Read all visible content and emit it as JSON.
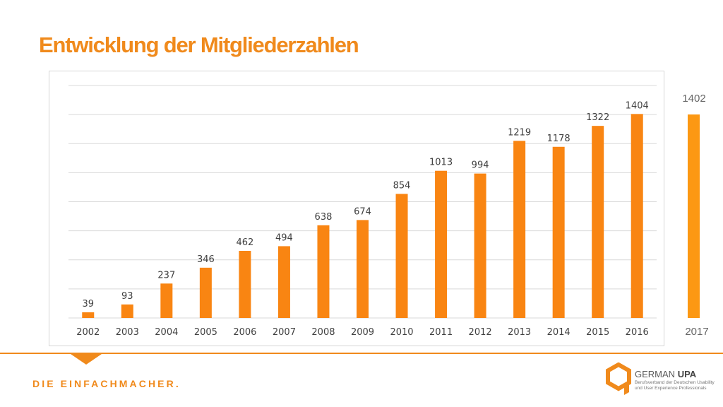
{
  "slide": {
    "title": "Entwicklung der Mitgliederzahlen",
    "tagline": "DIE EINFACHMACHER.",
    "accent_color": "#f08a1c"
  },
  "side_indicator": {
    "value": "1402",
    "year": "2017",
    "color": "#fc9813"
  },
  "logo": {
    "name_part1": "GERMAN",
    "name_part2": "UPA",
    "subtitle": "Berufsverband der Deutschen Usability und User Experience Professionals"
  },
  "chart_data": {
    "type": "bar",
    "categories": [
      "2002",
      "2003",
      "2004",
      "2005",
      "2006",
      "2007",
      "2008",
      "2009",
      "2010",
      "2011",
      "2012",
      "2013",
      "2014",
      "2015",
      "2016"
    ],
    "values": [
      39,
      93,
      237,
      346,
      462,
      494,
      638,
      674,
      854,
      1013,
      994,
      1219,
      1178,
      1322,
      1404
    ],
    "data_labels": [
      "39",
      "93",
      "237",
      "346",
      "462",
      "494",
      "638",
      "674",
      "854",
      "1013",
      "994",
      "1219",
      "1178",
      "1322",
      "1404"
    ],
    "ylim": [
      0,
      1600
    ],
    "gridlines": [
      200,
      400,
      600,
      800,
      1000,
      1200,
      1400,
      1600
    ],
    "grid": true,
    "legend": false,
    "bar_color": "#f98512"
  }
}
